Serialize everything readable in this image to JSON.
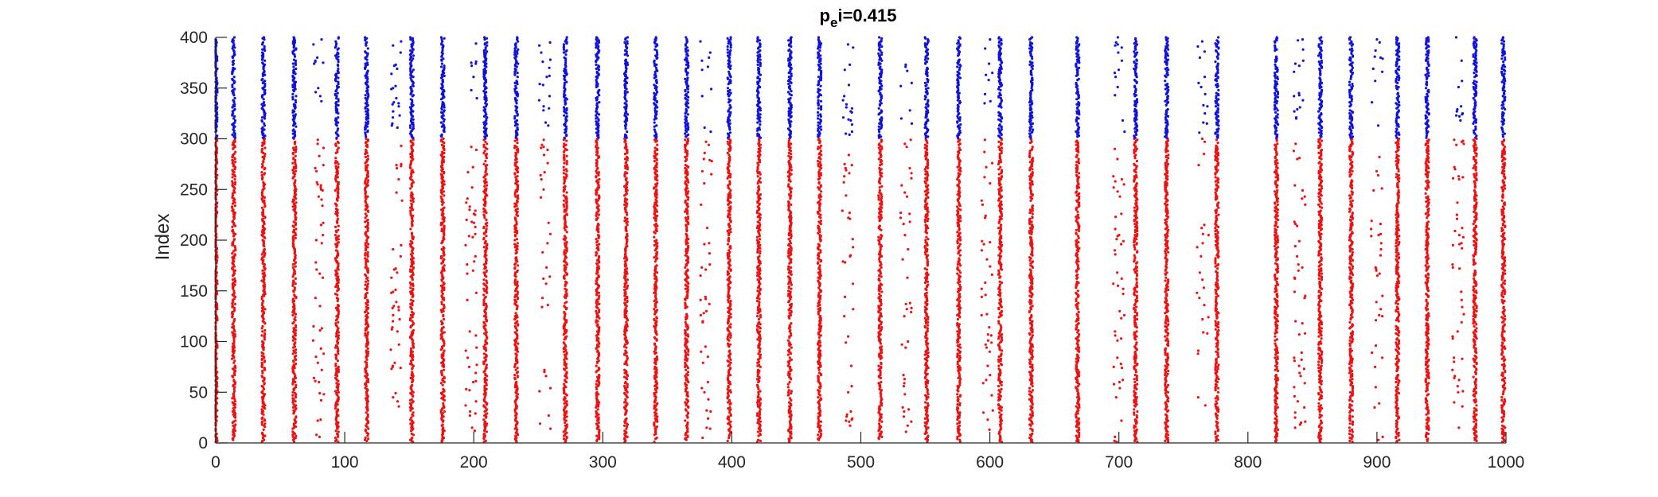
{
  "chart_data": {
    "type": "scatter",
    "title_main": "p",
    "title_sub": "e",
    "title_rest": "i=0.415",
    "xlabel": "",
    "ylabel": "Index",
    "xlim": [
      0,
      1000
    ],
    "ylim": [
      0,
      400
    ],
    "xticks": [
      0,
      100,
      200,
      300,
      400,
      500,
      600,
      700,
      800,
      900,
      1000
    ],
    "yticks": [
      0,
      50,
      100,
      150,
      200,
      250,
      300,
      350,
      400
    ],
    "grid": false,
    "legend": "none",
    "colors": {
      "excitatory": "#ee1111",
      "inhibitory": "#1111dd",
      "axis": "#262626"
    },
    "series": [
      {
        "index_range": [
          1,
          300
        ],
        "color_key": "excitatory",
        "burst_times": [
          0,
          14,
          37,
          61,
          94,
          117,
          152,
          176,
          209,
          233,
          271,
          296,
          318,
          341,
          365,
          398,
          421,
          445,
          468,
          515,
          551,
          576,
          608,
          632,
          668,
          713,
          737,
          776,
          822,
          856,
          880,
          916,
          939,
          976,
          998
        ],
        "weak_burst_times": [
          80,
          140,
          198,
          255,
          380,
          490,
          535,
          598,
          700,
          765,
          840,
          900,
          963
        ]
      },
      {
        "index_range": [
          301,
          400
        ],
        "color_key": "inhibitory",
        "burst_times": [
          0,
          14,
          37,
          61,
          94,
          117,
          152,
          176,
          209,
          233,
          271,
          296,
          318,
          341,
          365,
          398,
          421,
          445,
          468,
          515,
          551,
          576,
          608,
          632,
          668,
          713,
          737,
          776,
          822,
          856,
          880,
          916,
          939,
          976,
          998
        ],
        "weak_burst_times": [
          80,
          140,
          198,
          255,
          380,
          490,
          535,
          598,
          700,
          765,
          840,
          900,
          963
        ]
      }
    ]
  }
}
